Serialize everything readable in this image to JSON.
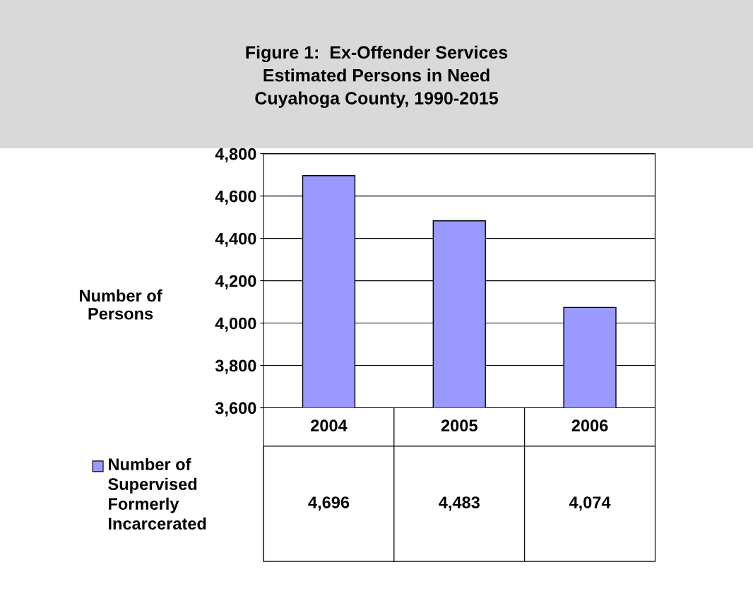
{
  "chart_data": {
    "type": "bar",
    "title": "Figure 1:  Ex-Offender Services\nEstimated Persons in Need\nCuyahoga County, 1990-2015",
    "ylabel": "Number of\nPersons",
    "categories": [
      "2004",
      "2005",
      "2006"
    ],
    "series": [
      {
        "name": "Number of Supervised Formerly Incarcerated",
        "color": "#9999ff",
        "values": [
          4696,
          4483,
          4074
        ],
        "value_labels": [
          "4,696",
          "4,483",
          "4,074"
        ]
      }
    ],
    "ylim": [
      3600,
      4800
    ],
    "yticks": [
      {
        "value": 3600,
        "label": "3,600"
      },
      {
        "value": 3800,
        "label": "3,800"
      },
      {
        "value": 4000,
        "label": "4,000"
      },
      {
        "value": 4200,
        "label": "4,200"
      },
      {
        "value": 4400,
        "label": "4,400"
      },
      {
        "value": 4600,
        "label": "4,600"
      },
      {
        "value": 4800,
        "label": "4,800"
      }
    ],
    "grid": "y",
    "legend": "bottom left"
  }
}
